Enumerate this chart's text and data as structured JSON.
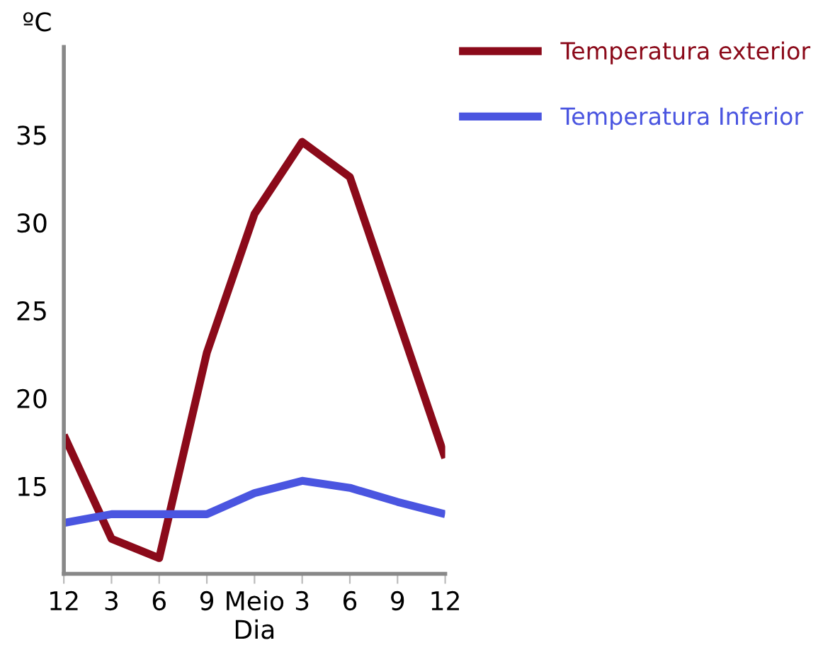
{
  "chart_data": {
    "type": "line",
    "ylabel": "ºC",
    "categories": [
      "12",
      "3",
      "6",
      "9",
      "Meio\nDia",
      "3",
      "6",
      "9",
      "12"
    ],
    "series": [
      {
        "name": "Temperatura exterior",
        "color": "#8b0a1a",
        "values": [
          17.9,
          12.0,
          10.9,
          22.6,
          30.5,
          34.6,
          32.6,
          24.6,
          16.6
        ]
      },
      {
        "name": "Temperatura Inferior",
        "color": "#4a55e0",
        "values": [
          12.9,
          13.4,
          13.4,
          13.4,
          14.6,
          15.3,
          14.9,
          14.1,
          13.4
        ]
      }
    ],
    "ylim": [
      10,
      40
    ],
    "yticks": [
      15,
      20,
      25,
      30,
      35
    ],
    "grid": false,
    "legend": "top right",
    "marker": "none",
    "line_style": "solid"
  }
}
